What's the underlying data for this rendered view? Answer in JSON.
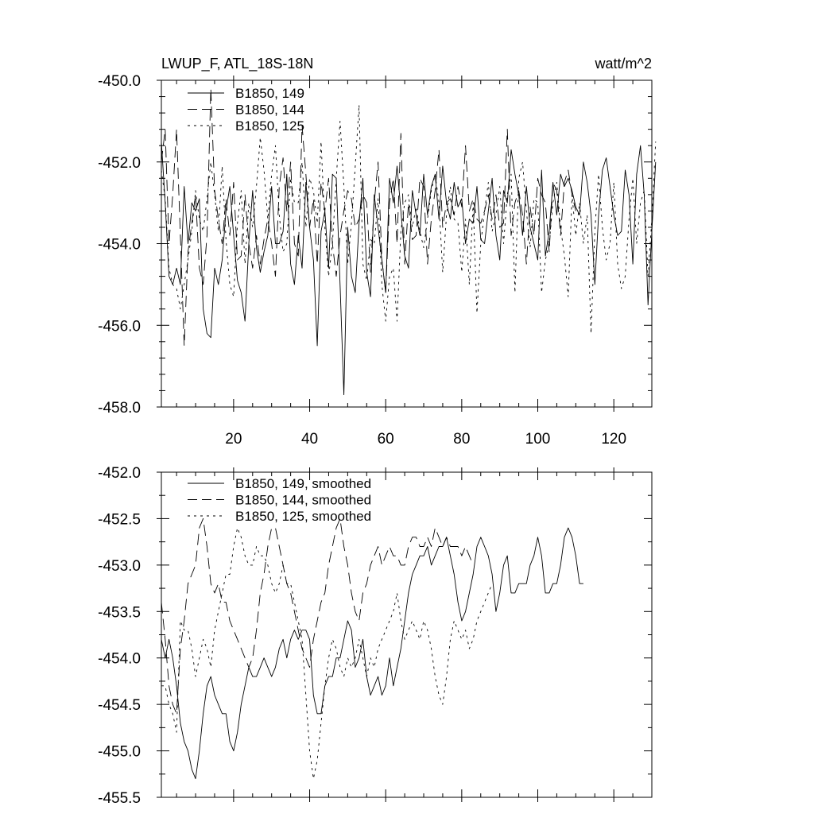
{
  "page": {
    "title_left": "LWUP_F, ATL_18S-18N",
    "title_right": "watt/m^2"
  },
  "chart_data": [
    {
      "type": "line",
      "title": "LWUP_F, ATL_18S-18N",
      "units": "watt/m^2",
      "xlim": [
        1,
        130
      ],
      "ylim": [
        -458,
        -450
      ],
      "x_ticks": [
        20,
        40,
        60,
        80,
        100,
        120
      ],
      "y_ticks": [
        -450.0,
        -452.0,
        -454.0,
        -456.0,
        -458.0
      ],
      "y_tick_labels": [
        "-450.0",
        "-452.0",
        "-454.0",
        "-456.0",
        "-458.0"
      ],
      "x_tick_labels": [
        "20",
        "40",
        "60",
        "80",
        "100",
        "120"
      ],
      "legend_position": "top-left",
      "series": [
        {
          "name": "B1850, 149",
          "style": "solid",
          "values": [
            -451.5,
            -453.0,
            -454.8,
            -455.0,
            -454.6,
            -455.0,
            -452.6,
            -454.0,
            -453.0,
            -453.2,
            -452.9,
            -455.6,
            -456.2,
            -456.3,
            -454.6,
            -455.0,
            -454.4,
            -453.2,
            -452.6,
            -453.8,
            -454.9,
            -455.2,
            -455.9,
            -454.0,
            -452.7,
            -454.1,
            -454.7,
            -454.2,
            -453.8,
            -452.6,
            -454.0,
            -454.0,
            -453.7,
            -452.3,
            -454.5,
            -455.0,
            -453.8,
            -454.6,
            -452.5,
            -453.6,
            -454.4,
            -456.5,
            -453.7,
            -453.2,
            -454.6,
            -452.3,
            -452.4,
            -455.0,
            -457.7,
            -453.6,
            -454.8,
            -455.2,
            -453.5,
            -452.4,
            -454.7,
            -455.3,
            -452.8,
            -453.6,
            -454.4,
            -455.2,
            -452.4,
            -453.0,
            -452.1,
            -453.2,
            -454.3,
            -454.6,
            -452.7,
            -453.3,
            -453.8,
            -452.3,
            -453.3,
            -452.6,
            -452.3,
            -453.4,
            -452.1,
            -453.0,
            -453.4,
            -452.5,
            -453.1,
            -452.9,
            -454.0,
            -453.4,
            -453.5,
            -452.6,
            -453.9,
            -454.0,
            -453.2,
            -452.4,
            -453.8,
            -454.4,
            -452.7,
            -453.0,
            -451.7,
            -452.3,
            -452.8,
            -453.8,
            -452.6,
            -453.6,
            -454.0,
            -454.4,
            -452.2,
            -454.3,
            -453.7,
            -452.5,
            -453.3,
            -452.3,
            -452.6,
            -452.4,
            -452.7,
            -453.1,
            -453.3,
            -452.0,
            -452.5,
            -453.3,
            -455.0,
            -453.3,
            -452.2,
            -451.9,
            -452.6,
            -453.3,
            -453.8,
            -453.7,
            -452.2,
            -452.8,
            -454.5,
            -452.3,
            -451.6,
            -452.8,
            -455.5,
            -453.7,
            -452.0
          ]
        },
        {
          "name": "B1850, 144",
          "style": "dashed",
          "values": [
            -452.0,
            -451.2,
            -454.0,
            -452.8,
            -451.2,
            -453.8,
            -456.5,
            -454.2,
            -453.5,
            -452.8,
            -454.6,
            -455.0,
            -453.8,
            -450.2,
            -452.7,
            -453.4,
            -454.0,
            -452.9,
            -453.8,
            -452.5,
            -454.4,
            -454.3,
            -452.8,
            -454.0,
            -454.6,
            -453.8,
            -454.5,
            -453.9,
            -453.4,
            -454.0,
            -454.8,
            -452.6,
            -451.9,
            -453.2,
            -452.0,
            -454.0,
            -454.3,
            -451.1,
            -452.3,
            -453.6,
            -452.9,
            -454.5,
            -452.5,
            -453.2,
            -452.4,
            -454.0,
            -454.8,
            -453.8,
            -453.2,
            -452.7,
            -452.9,
            -453.6,
            -453.4,
            -452.8,
            -453.0,
            -454.7,
            -453.0,
            -452.0,
            -454.4,
            -455.2,
            -453.0,
            -452.4,
            -454.0,
            -451.3,
            -454.5,
            -453.0,
            -453.9,
            -453.8,
            -452.4,
            -452.6,
            -454.5,
            -453.4,
            -452.7,
            -451.7,
            -453.6,
            -453.0,
            -452.9,
            -453.3,
            -452.6,
            -453.1,
            -451.6,
            -453.2,
            -452.9,
            -453.4,
            -453.5,
            -453.2,
            -452.8,
            -453.4,
            -452.8,
            -453.6,
            -453.5,
            -451.2,
            -453.8,
            -453.0,
            -452.7,
            -453.3,
            -454.5,
            -453.1,
            -453.8,
            -452.4,
            -452.8,
            -453.0,
            -454.2,
            -452.5,
            -452.7,
            -453.8,
            -452.5,
            -452.2,
            -452.8,
            -453.2
          ]
        },
        {
          "name": "B1850, 125",
          "style": "dotted",
          "values": [
            -452.2,
            -452.9,
            -454.6,
            -455.0,
            -455.1,
            -455.6,
            -455.0,
            -454.4,
            -453.7,
            -452.7,
            -453.4,
            -453.7,
            -452.9,
            -452.0,
            -452.8,
            -453.7,
            -452.1,
            -453.9,
            -455.0,
            -455.3,
            -453.5,
            -452.7,
            -454.5,
            -453.0,
            -453.6,
            -452.6,
            -451.4,
            -452.2,
            -453.4,
            -452.3,
            -451.6,
            -453.3,
            -454.2,
            -454.0,
            -452.4,
            -453.0,
            -453.0,
            -452.0,
            -453.6,
            -452.4,
            -452.7,
            -453.5,
            -451.5,
            -453.6,
            -454.8,
            -454.0,
            -452.4,
            -451.0,
            -452.6,
            -454.5,
            -453.5,
            -452.1,
            -450.6,
            -454.5,
            -454.9,
            -453.9,
            -454.0,
            -452.9,
            -455.0,
            -455.9,
            -454.8,
            -454.6,
            -455.9,
            -453.7,
            -453.0,
            -452.8,
            -453.6,
            -453.1,
            -453.7,
            -454.1,
            -453.4,
            -452.7,
            -452.3,
            -453.0,
            -454.7,
            -453.3,
            -452.6,
            -453.4,
            -453.5,
            -454.7,
            -453.4,
            -455.0,
            -453.0,
            -455.7,
            -454.0,
            -453.2,
            -452.5,
            -453.7,
            -453.3,
            -452.6,
            -454.0,
            -452.8,
            -452.3,
            -455.2,
            -452.4,
            -452.0,
            -453.2,
            -454.1,
            -452.9,
            -453.0,
            -455.2,
            -454.4,
            -454.0,
            -453.0,
            -452.5,
            -453.6,
            -454.3,
            -455.3,
            -452.8,
            -453.8,
            -453.0,
            -454.0,
            -453.3,
            -456.2,
            -453.7,
            -452.3,
            -453.6,
            -454.4,
            -454.0,
            -452.5,
            -454.5,
            -455.1,
            -454.8,
            -453.4,
            -452.4,
            -454.0,
            -453.0,
            -452.7,
            -454.8,
            -453.4,
            -451.5
          ]
        }
      ]
    },
    {
      "type": "line",
      "xlim": [
        1,
        130
      ],
      "ylim": [
        -455.5,
        -452.0
      ],
      "x_ticks": [
        20,
        40,
        60,
        80,
        100,
        120
      ],
      "y_ticks": [
        -452.0,
        -452.5,
        -453.0,
        -453.5,
        -454.0,
        -454.5,
        -455.0,
        -455.5
      ],
      "y_tick_labels": [
        "-452.0",
        "-452.5",
        "-453.0",
        "-453.5",
        "-454.0",
        "-454.5",
        "-455.0",
        "-455.5"
      ],
      "legend_position": "top-left",
      "series": [
        {
          "name": "B1850, 149, smoothed",
          "style": "solid",
          "values": [
            -453.8,
            -454.0,
            -453.8,
            -454.0,
            -454.3,
            -454.7,
            -454.9,
            -455.0,
            -455.2,
            -455.3,
            -455.0,
            -454.6,
            -454.3,
            -454.2,
            -454.4,
            -454.5,
            -454.6,
            -454.6,
            -454.9,
            -455.0,
            -454.8,
            -454.5,
            -454.3,
            -454.1,
            -454.2,
            -454.2,
            -454.1,
            -454.0,
            -454.1,
            -454.2,
            -454.1,
            -453.9,
            -453.8,
            -454.0,
            -453.8,
            -453.7,
            -453.8,
            -453.7,
            -453.7,
            -453.8,
            -454.4,
            -454.6,
            -454.6,
            -454.3,
            -454.2,
            -454.2,
            -454.0,
            -454.0,
            -453.8,
            -453.6,
            -453.7,
            -454.1,
            -454.0,
            -453.8,
            -454.2,
            -454.4,
            -454.3,
            -454.2,
            -454.4,
            -454.3,
            -454.0,
            -454.3,
            -454.1,
            -453.9,
            -453.6,
            -453.3,
            -453.1,
            -453.0,
            -452.9,
            -452.9,
            -452.8,
            -453.0,
            -452.9,
            -452.8,
            -452.8,
            -452.7,
            -452.9,
            -453.1,
            -453.4,
            -453.6,
            -453.5,
            -453.3,
            -453.1,
            -452.8,
            -452.7,
            -452.8,
            -452.9,
            -453.1,
            -453.5,
            -453.3,
            -453.0,
            -452.9,
            -453.3,
            -453.3,
            -453.2,
            -453.2,
            -453.2,
            -453.0,
            -452.9,
            -452.7,
            -452.9,
            -453.3,
            -453.3,
            -453.2,
            -453.2,
            -453.0,
            -452.7,
            -452.6,
            -452.7,
            -452.9,
            -453.2,
            -453.2
          ]
        },
        {
          "name": "B1850, 144, smoothed",
          "style": "dashed",
          "values": [
            -453.4,
            -453.8,
            -454.3,
            -454.5,
            -454.6,
            -453.9,
            -453.6,
            -453.2,
            -453.1,
            -453.0,
            -452.6,
            -452.5,
            -452.8,
            -453.2,
            -453.3,
            -453.2,
            -453.4,
            -453.4,
            -453.6,
            -453.7,
            -453.8,
            -453.9,
            -454.0,
            -454.1,
            -454.0,
            -453.7,
            -453.3,
            -453.1,
            -452.8,
            -452.6,
            -452.6,
            -452.8,
            -453.0,
            -453.2,
            -453.3,
            -453.5,
            -453.7,
            -453.9,
            -454.0,
            -454.1,
            -453.8,
            -453.6,
            -453.4,
            -453.3,
            -453.0,
            -452.8,
            -452.6,
            -452.5,
            -452.8,
            -453.0,
            -453.3,
            -453.5,
            -453.6,
            -453.3,
            -453.2,
            -453.0,
            -452.9,
            -452.8,
            -453.0,
            -452.9,
            -452.8,
            -452.9,
            -452.9,
            -453.0,
            -453.0,
            -452.8,
            -452.7,
            -452.7,
            -452.8,
            -452.8,
            -452.7,
            -452.8,
            -452.6,
            -452.7,
            -452.8,
            -452.7,
            -452.8,
            -452.8,
            -452.8,
            -452.9,
            -452.8,
            -452.9,
            -453.0
          ]
        },
        {
          "name": "B1850, 125, smoothed",
          "style": "dotted",
          "values": [
            -454.3,
            -454.3,
            -454.5,
            -454.6,
            -454.8,
            -453.6,
            -453.7,
            -453.7,
            -453.9,
            -454.2,
            -454.0,
            -453.8,
            -453.9,
            -454.1,
            -453.7,
            -453.5,
            -453.3,
            -453.1,
            -453.1,
            -452.8,
            -452.6,
            -452.7,
            -452.9,
            -453.0,
            -453.0,
            -452.8,
            -452.9,
            -452.9,
            -453.0,
            -453.2,
            -453.3,
            -453.2,
            -453.0,
            -453.2,
            -453.2,
            -453.4,
            -453.6,
            -453.8,
            -454.4,
            -455.0,
            -455.3,
            -455.1,
            -454.7,
            -454.3,
            -454.0,
            -453.8,
            -453.9,
            -454.1,
            -454.2,
            -454.0,
            -454.1,
            -454.0,
            -453.8,
            -454.0,
            -454.2,
            -454.0,
            -454.1,
            -453.9,
            -453.8,
            -453.7,
            -453.6,
            -453.5,
            -453.3,
            -453.6,
            -453.8,
            -453.7,
            -453.6,
            -453.7,
            -453.8,
            -453.6,
            -453.7,
            -453.9,
            -454.2,
            -454.4,
            -454.5,
            -454.2,
            -453.8,
            -453.6,
            -453.7,
            -453.8,
            -453.7,
            -453.9,
            -453.8,
            -453.6,
            -453.5,
            -453.4,
            -453.3,
            -453.2
          ]
        }
      ]
    }
  ]
}
